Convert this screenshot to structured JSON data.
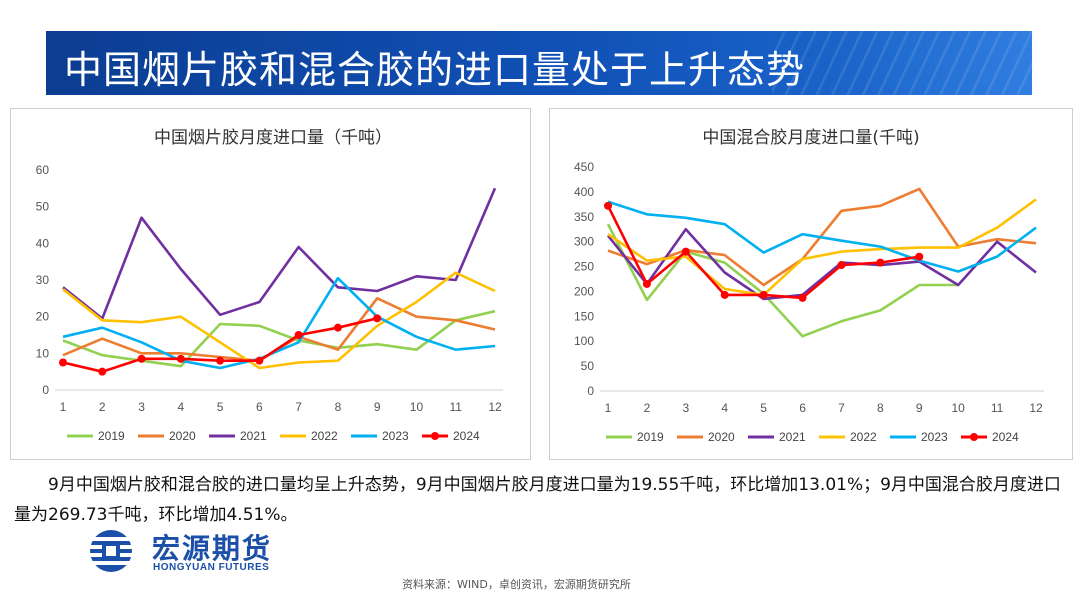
{
  "header": {
    "title": "中国烟片胶和混合胶的进口量处于上升态势"
  },
  "description": "9月中国烟片胶和混合胶的进口量均呈上升态势，9月中国烟片胶月度进口量为19.55千吨，环比增加13.01%；9月中国混合胶月度进口量为269.73千吨，环比增加4.51%。",
  "logo": {
    "name_cn": "宏源期货",
    "name_en": "HONGYUAN FUTURES"
  },
  "source": "资料来源：WIND，卓创资讯，宏源期货研究所",
  "colors": {
    "banner": "#1152b8",
    "s2019": "#92d050",
    "s2020": "#ed7d31",
    "s2021": "#7030a0",
    "s2022": "#ffc000",
    "s2023": "#00b0f0",
    "s2024": "#ff0000"
  },
  "chart_data": [
    {
      "type": "line",
      "title": "中国烟片胶月度进口量（千吨）",
      "x": [
        1,
        2,
        3,
        4,
        5,
        6,
        7,
        8,
        9,
        10,
        11,
        12
      ],
      "ylim": [
        0,
        60
      ],
      "yticks": [
        0,
        10,
        20,
        30,
        40,
        50,
        60
      ],
      "grid": false,
      "legend": "bottom",
      "series": [
        {
          "name": "2019",
          "color": "#92d050",
          "values": [
            13.5,
            9.5,
            8,
            6.5,
            18,
            17.5,
            13.5,
            11.5,
            12.5,
            11,
            19,
            21.5
          ]
        },
        {
          "name": "2020",
          "color": "#ed7d31",
          "values": [
            9.5,
            14,
            10,
            10,
            9,
            8,
            14.5,
            11,
            25,
            20,
            19,
            16.5
          ]
        },
        {
          "name": "2021",
          "color": "#7030a0",
          "values": [
            28,
            19.5,
            47,
            33,
            20.5,
            24,
            39,
            28,
            27,
            31,
            30,
            55
          ]
        },
        {
          "name": "2022",
          "color": "#ffc000",
          "values": [
            27.5,
            19,
            18.5,
            20,
            13,
            6,
            7.5,
            8,
            17.5,
            24,
            32,
            27
          ]
        },
        {
          "name": "2023",
          "color": "#00b0f0",
          "values": [
            14.5,
            17,
            13,
            8,
            6,
            8.5,
            13,
            30.5,
            20,
            14.5,
            11,
            12
          ]
        },
        {
          "name": "2024",
          "color": "#ff0000",
          "values": [
            7.5,
            5,
            8.5,
            8.5,
            8,
            8,
            15,
            17,
            19.55,
            null,
            null,
            null
          ],
          "markers": true
        }
      ]
    },
    {
      "type": "line",
      "title": "中国混合胶月度进口量(千吨)",
      "x": [
        1,
        2,
        3,
        4,
        5,
        6,
        7,
        8,
        9,
        10,
        11,
        12
      ],
      "ylim": [
        0,
        450
      ],
      "yticks": [
        0,
        50,
        100,
        150,
        200,
        250,
        300,
        350,
        400,
        450
      ],
      "grid": false,
      "legend": "bottom",
      "series": [
        {
          "name": "2019",
          "color": "#92d050",
          "values": [
            335,
            183,
            280,
            258,
            195,
            110,
            140,
            162,
            213,
            213,
            null,
            null
          ]
        },
        {
          "name": "2020",
          "color": "#ed7d31",
          "values": [
            282,
            255,
            283,
            273,
            213,
            265,
            362,
            372,
            406,
            290,
            305,
            297
          ]
        },
        {
          "name": "2021",
          "color": "#7030a0",
          "values": [
            312,
            215,
            325,
            238,
            185,
            193,
            258,
            253,
            260,
            213,
            300,
            238
          ]
        },
        {
          "name": "2022",
          "color": "#ffc000",
          "values": [
            315,
            262,
            270,
            205,
            193,
            265,
            280,
            285,
            288,
            288,
            328,
            385
          ]
        },
        {
          "name": "2023",
          "color": "#00b0f0",
          "values": [
            380,
            355,
            348,
            335,
            278,
            315,
            302,
            290,
            262,
            240,
            270,
            328
          ]
        },
        {
          "name": "2024",
          "color": "#ff0000",
          "values": [
            372,
            215,
            280,
            193,
            193,
            187,
            253,
            258,
            269.73,
            null,
            null,
            null
          ],
          "markers": true
        }
      ]
    }
  ]
}
